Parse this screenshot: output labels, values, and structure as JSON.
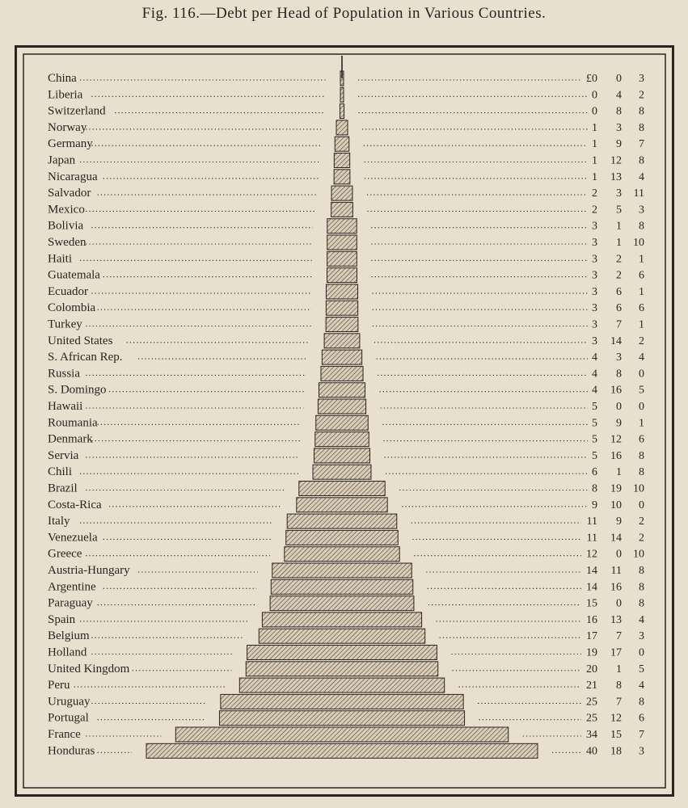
{
  "title": "Fig. 116.—Debt per Head of Population in Various Countries.",
  "currency_symbol": "£",
  "chart_data": {
    "type": "bar",
    "orientation": "horizontal-centered",
    "unit": "£ s d",
    "title": "Fig. 116.—Debt per Head of Population in Various Countries.",
    "categories": [
      "China",
      "Liberia",
      "Switzerland",
      "Norway",
      "Germany",
      "Japan",
      "Nicaragua",
      "Salvador",
      "Mexico",
      "Bolivia",
      "Sweden",
      "Haiti",
      "Guatemala",
      "Ecuador",
      "Colombia",
      "Turkey",
      "United States",
      "S. African Rep.",
      "Russia",
      "S. Domingo",
      "Hawaii",
      "Roumania",
      "Denmark",
      "Servia",
      "Chili",
      "Brazil",
      "Costa-Rica",
      "Italy",
      "Venezuela",
      "Greece",
      "Austria-Hungary",
      "Argentine",
      "Paraguay",
      "Spain",
      "Belgium",
      "Holland",
      "United Kingdom",
      "Peru",
      "Uruguay",
      "Portugal",
      "France",
      "Honduras"
    ],
    "values": [
      [
        0,
        0,
        3
      ],
      [
        0,
        4,
        2
      ],
      [
        0,
        8,
        8
      ],
      [
        1,
        3,
        8
      ],
      [
        1,
        9,
        7
      ],
      [
        1,
        12,
        8
      ],
      [
        1,
        13,
        4
      ],
      [
        2,
        3,
        11
      ],
      [
        2,
        5,
        3
      ],
      [
        3,
        1,
        8
      ],
      [
        3,
        1,
        10
      ],
      [
        3,
        2,
        1
      ],
      [
        3,
        2,
        6
      ],
      [
        3,
        6,
        1
      ],
      [
        3,
        6,
        6
      ],
      [
        3,
        7,
        1
      ],
      [
        3,
        14,
        2
      ],
      [
        4,
        3,
        4
      ],
      [
        4,
        8,
        0
      ],
      [
        4,
        16,
        5
      ],
      [
        5,
        0,
        0
      ],
      [
        5,
        9,
        1
      ],
      [
        5,
        12,
        6
      ],
      [
        5,
        16,
        8
      ],
      [
        6,
        1,
        8
      ],
      [
        8,
        19,
        10
      ],
      [
        9,
        10,
        0
      ],
      [
        11,
        9,
        2
      ],
      [
        11,
        14,
        2
      ],
      [
        12,
        0,
        10
      ],
      [
        14,
        11,
        8
      ],
      [
        14,
        16,
        8
      ],
      [
        15,
        0,
        8
      ],
      [
        16,
        13,
        4
      ],
      [
        17,
        7,
        3
      ],
      [
        19,
        17,
        0
      ],
      [
        20,
        1,
        5
      ],
      [
        21,
        8,
        4
      ],
      [
        25,
        7,
        8
      ],
      [
        25,
        12,
        6
      ],
      [
        34,
        15,
        7
      ],
      [
        40,
        18,
        3
      ]
    ],
    "legend": "none",
    "grid": false
  }
}
